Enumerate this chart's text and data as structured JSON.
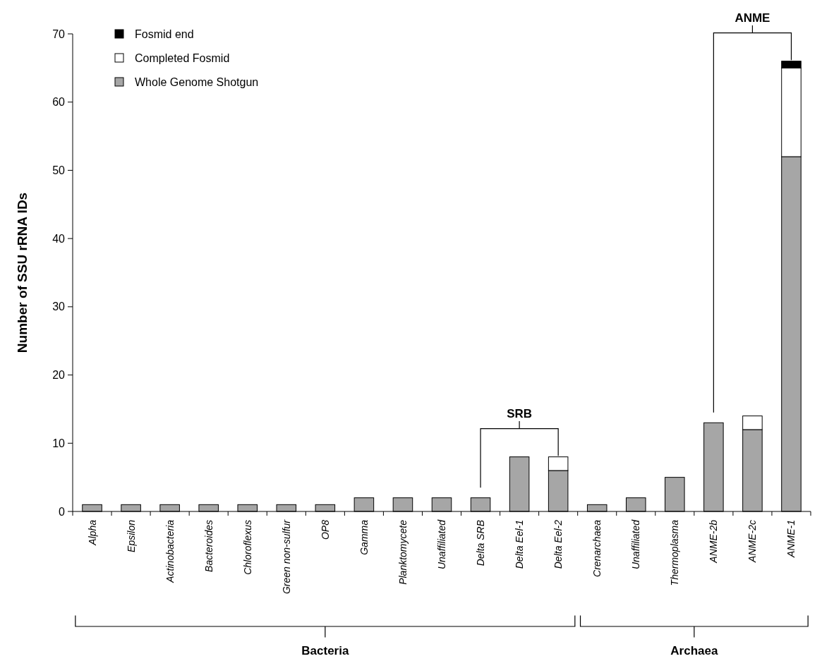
{
  "chart_data": {
    "type": "bar",
    "stacked": true,
    "ylabel": "Number of SSU rRNA IDs",
    "ylim": [
      0,
      70
    ],
    "yticks": [
      0,
      10,
      20,
      30,
      40,
      50,
      60,
      70
    ],
    "legend": "top left",
    "grid": false,
    "categories": [
      "Alpha",
      "Epsilon",
      "Actinobacteria",
      "Bacteroides",
      "Chloroflexus",
      "Green non-sulfur",
      "OP8",
      "Gamma",
      "Planktomycete",
      "Unaffiliated",
      "Delta SRB",
      "Delta Eel-1",
      "Delta Eel-2",
      "Crenarchaea",
      "Unaffiliated",
      "Thermoplasma",
      "ANME-2b",
      "ANME-2c",
      "ANME-1"
    ],
    "series": [
      {
        "name": "Whole Genome Shotgun",
        "color": "#a6a6a6",
        "values": [
          1,
          1,
          1,
          1,
          1,
          1,
          1,
          2,
          2,
          2,
          2,
          8,
          6,
          1,
          2,
          5,
          13,
          12,
          52
        ]
      },
      {
        "name": "Completed Fosmid",
        "color": "#ffffff",
        "values": [
          0,
          0,
          0,
          0,
          0,
          0,
          0,
          0,
          0,
          0,
          0,
          0,
          2,
          0,
          0,
          0,
          0,
          2,
          13
        ]
      },
      {
        "name": "Fosmid end",
        "color": "#000000",
        "values": [
          0,
          0,
          0,
          0,
          0,
          0,
          0,
          0,
          0,
          0,
          0,
          0,
          0,
          0,
          0,
          0,
          0,
          0,
          1
        ]
      }
    ],
    "annotations": [
      "SRB",
      "ANME",
      "Bacteria",
      "Archaea"
    ]
  }
}
